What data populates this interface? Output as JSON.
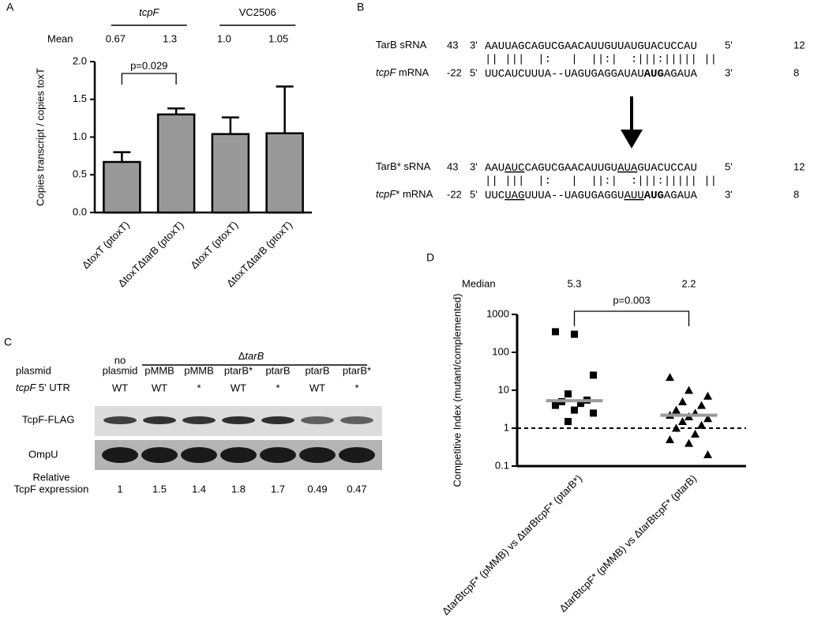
{
  "panel_labels": [
    "A",
    "B",
    "C",
    "D"
  ],
  "chart_data": [
    {
      "type": "bar",
      "y_label": "Copies transcript / copies toxT",
      "group_labels": [
        [
          {
            "text": "tcpF",
            "italic": true
          }
        ],
        [
          {
            "text": "VC2506"
          }
        ]
      ],
      "value_label_title": "Mean",
      "categories": [
        "ΔtoxT (ptoxT)",
        "ΔtoxTΔtarB (ptoxT)",
        "ΔtoxT (ptoxT)",
        "ΔtoxTΔtarB (ptoxT)"
      ],
      "values": [
        0.67,
        1.3,
        1.04,
        1.05
      ],
      "value_labels": [
        "0.67",
        "1.3",
        "1.0",
        "1.05"
      ],
      "errors": [
        0.13,
        0.08,
        0.22,
        0.62
      ],
      "color": "#999999",
      "ylim": [
        0,
        2
      ],
      "yticks": [
        {
          "value": 0,
          "label": "0.0"
        },
        {
          "value": 0.5,
          "label": "0.5"
        },
        {
          "value": 1,
          "label": "1.0"
        },
        {
          "value": 1.5,
          "label": "1.5"
        },
        {
          "value": 2,
          "label": "2.0"
        }
      ],
      "annotation": "p=0.029"
    },
    {
      "type": "scatter",
      "y_label": "Competitive Index (mutant/complemented)",
      "categories": [
        "ΔtarBtcpF* (pMMB) vs ΔtarBtcpF* (ptarB*)",
        "ΔtarBtcpF* (pMMB) vs ΔtarBtcpF* (ptarB)"
      ],
      "groups": [
        {
          "marker": "square",
          "color": "#000000",
          "values": [
            350,
            300,
            25,
            8,
            5.5,
            5,
            4.5,
            4,
            3,
            2.5,
            1.5
          ]
        },
        {
          "marker": "triangle",
          "color": "#000000",
          "values": [
            22,
            10,
            7,
            5,
            4,
            3,
            2.5,
            2.2,
            2,
            1.8,
            1.5,
            1.2,
            1,
            0.7,
            0.5,
            0.4,
            0.2
          ]
        }
      ],
      "median_title": "Median",
      "medians": [
        5.3,
        2.2
      ],
      "median_color": "#999999",
      "reference_line": 1,
      "log_scale": true,
      "ylim": [
        0.1,
        1000
      ],
      "yticks": [
        0.1,
        1,
        10,
        100,
        1000
      ],
      "annotation": "p=0.003"
    }
  ],
  "alignment": [
    {
      "srna": {
        "name": [
          {
            "text": "TarB sRNA"
          }
        ],
        "start": "43",
        "end": "12",
        "prime_start": "3'",
        "prime_end": "5'",
        "sequence": [
          {
            "text": "AAUUAGCAGUCGAACAUUGUUAUGUACUCCAU"
          }
        ]
      },
      "pairing": "|| |||  |:   |  ||:|  :|||:||||| ||",
      "mrna": {
        "name": [
          {
            "text": "tcpF",
            "italic": true
          },
          {
            "text": " mRNA"
          }
        ],
        "start": "-22",
        "end": "8",
        "prime_start": "5'",
        "prime_end": "3'",
        "sequence": [
          {
            "text": "UUCAUCUUUA--UAGUGAGGAUAU"
          },
          {
            "text": "AUG",
            "bold": true
          },
          {
            "text": "AGAUA"
          }
        ]
      }
    },
    {
      "srna": {
        "name": [
          {
            "text": "TarB* sRNA"
          }
        ],
        "start": "43",
        "end": "12",
        "prime_start": "3'",
        "prime_end": "5'",
        "sequence": [
          {
            "text": "AAU"
          },
          {
            "text": "AUC",
            "underline": true
          },
          {
            "text": "CAGUCGAACAUUGU"
          },
          {
            "text": "AUA",
            "underline": true
          },
          {
            "text": "GUACUCCAU"
          }
        ]
      },
      "pairing": "|| |||  |:   |  ||:|  :|||:||||| ||",
      "mrna": {
        "name": [
          {
            "text": "tcpF",
            "italic": true
          },
          {
            "text": "* mRNA"
          }
        ],
        "start": "-22",
        "end": "8",
        "prime_start": "5'",
        "prime_end": "3'",
        "sequence": [
          {
            "text": "UUC"
          },
          {
            "text": "UAG",
            "underline": true
          },
          {
            "text": "UUUA--UAGUGAGGU"
          },
          {
            "text": "AUU",
            "underline": true
          },
          {
            "text": "AUG",
            "bold": true
          },
          {
            "text": "AGAUA"
          }
        ]
      }
    }
  ],
  "blot": {
    "header": [
      {
        "text": "Δ"
      },
      {
        "text": "tarB",
        "italic": true
      }
    ],
    "plasmid_label": "plasmid",
    "utr_label": [
      {
        "text": "tcpF",
        "italic": true
      },
      {
        "text": " 5' UTR"
      }
    ],
    "band_labels": [
      "TcpF-FLAG",
      "OmpU"
    ],
    "expression_label": [
      "Relative",
      "TcpF expression"
    ],
    "lanes": [
      {
        "plasmid": [
          "no",
          "plasmid"
        ],
        "utr": "WT",
        "expression": 1
      },
      {
        "plasmid": [
          "pMMB"
        ],
        "utr": "WT",
        "expression": 1.5
      },
      {
        "plasmid": [
          "pMMB"
        ],
        "utr": "*",
        "expression": 1.4
      },
      {
        "plasmid": [
          "ptarB*"
        ],
        "utr": "WT",
        "expression": 1.8
      },
      {
        "plasmid": [
          "ptarB"
        ],
        "utr": "*",
        "expression": 1.7
      },
      {
        "plasmid": [
          "ptarB"
        ],
        "utr": "WT",
        "expression": 0.49
      },
      {
        "plasmid": [
          "ptarB*"
        ],
        "utr": "*",
        "expression": 0.47
      }
    ]
  }
}
